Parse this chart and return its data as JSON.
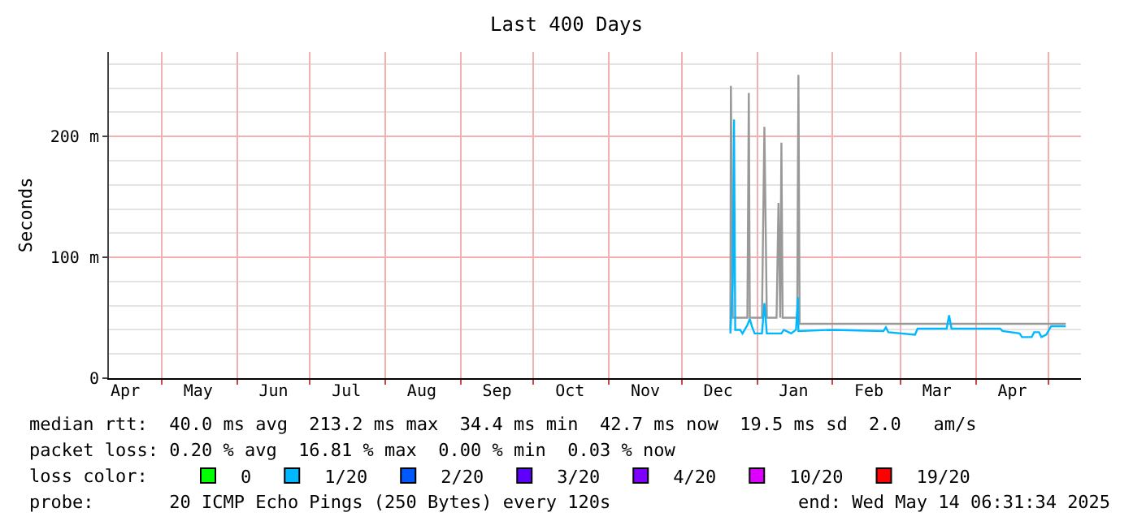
{
  "chart_data": {
    "type": "line",
    "title": "Last 400 Days",
    "ylabel": "Seconds",
    "xlim": [
      "2024-04-09T06:31",
      "2025-05-14T06:31"
    ],
    "xticks": [
      {
        "value": "2024-05-01",
        "label": null
      },
      {
        "value": "2024-06-01",
        "label": null
      },
      {
        "value": "2024-07-01",
        "label": null
      },
      {
        "value": "2024-08-01",
        "label": null
      },
      {
        "value": "2024-09-01",
        "label": null
      },
      {
        "value": "2024-10-01",
        "label": null
      },
      {
        "value": "2024-11-01",
        "label": null
      },
      {
        "value": "2024-12-01",
        "label": null
      },
      {
        "value": "2025-01-01",
        "label": null
      },
      {
        "value": "2025-02-01",
        "label": null
      },
      {
        "value": "2025-03-01",
        "label": null
      },
      {
        "value": "2025-04-01",
        "label": null
      },
      {
        "value": "2025-05-01",
        "label": null
      },
      {
        "value": "2024-04-16",
        "label": "Apr"
      },
      {
        "value": "2024-05-16",
        "label": "May"
      },
      {
        "value": "2024-06-16",
        "label": "Jun"
      },
      {
        "value": "2024-07-16",
        "label": "Jul"
      },
      {
        "value": "2024-08-16",
        "label": "Aug"
      },
      {
        "value": "2024-09-16",
        "label": "Sep"
      },
      {
        "value": "2024-10-16",
        "label": "Oct"
      },
      {
        "value": "2024-11-16",
        "label": "Nov"
      },
      {
        "value": "2024-12-16",
        "label": "Dec"
      },
      {
        "value": "2025-01-16",
        "label": "Jan"
      },
      {
        "value": "2025-02-16",
        "label": "Feb"
      },
      {
        "value": "2025-03-16",
        "label": "Mar"
      },
      {
        "value": "2025-04-16",
        "label": "Apr"
      }
    ],
    "ylim": [
      0,
      270
    ],
    "yticks": [
      0,
      {
        "value": 100,
        "label": "100 m"
      },
      {
        "value": 200,
        "label": "200 m"
      },
      {
        "value": 20,
        "label": null
      },
      {
        "value": 40,
        "label": null
      },
      {
        "value": 60,
        "label": null
      },
      {
        "value": 80,
        "label": null
      },
      {
        "value": 120,
        "label": null
      },
      {
        "value": 140,
        "label": null
      },
      {
        "value": 160,
        "label": null
      },
      {
        "value": 180,
        "label": null
      },
      {
        "value": 220,
        "label": null
      },
      {
        "value": 240,
        "label": null
      },
      {
        "value": 260,
        "label": null
      }
    ],
    "grid": true,
    "legend": "bottom",
    "series": [
      {
        "color": "#999999",
        "x": [
          "2024-12-21",
          "2024-12-21T05:00",
          "2024-12-22",
          "2024-12-28",
          "2024-12-28T14:00",
          "2024-12-29",
          "2025-01-03",
          "2025-01-04",
          "2025-01-05",
          "2025-01-09",
          "2025-01-09T19:00",
          "2025-01-10T12:00",
          "2025-01-11",
          "2025-01-11T12:00",
          "2025-01-17T12:00",
          "2025-01-18",
          "2025-01-18T12:00",
          "2025-05-08"
        ],
        "values": [
          40,
          242,
          50,
          50,
          236,
          50,
          50,
          208,
          50,
          50,
          145,
          50,
          195,
          50,
          50,
          251,
          45,
          45
        ]
      },
      {
        "color": "#00b8ff",
        "x": [
          "2024-12-21",
          "2024-12-22",
          "2024-12-22T12:00",
          "2024-12-23",
          "2024-12-25",
          "2024-12-26",
          "2024-12-28",
          "2024-12-29",
          "2024-12-30",
          "2024-12-31",
          "2025-01-03",
          "2025-01-04",
          "2025-01-05",
          "2025-01-11",
          "2025-01-12",
          "2025-01-15",
          "2025-01-17",
          "2025-01-17T20:00",
          "2025-01-18",
          "2025-02-01",
          "2025-02-22",
          "2025-02-23",
          "2025-02-24",
          "2025-03-07",
          "2025-03-08",
          "2025-03-20",
          "2025-03-21",
          "2025-03-22",
          "2025-04-11",
          "2025-04-12",
          "2025-04-19",
          "2025-04-20",
          "2025-04-24",
          "2025-04-25",
          "2025-04-27",
          "2025-04-28",
          "2025-04-30",
          "2025-05-02",
          "2025-05-08"
        ],
        "values": [
          37,
          80,
          214,
          40,
          40,
          37,
          44,
          49,
          42,
          37,
          37,
          62,
          37,
          37,
          40,
          37,
          40,
          67,
          39,
          40,
          39,
          42,
          38,
          36,
          41,
          41,
          52,
          41,
          41,
          39,
          37,
          34,
          34,
          38,
          38,
          34,
          36,
          43,
          43
        ]
      },
      {
        "name": "0",
        "color": "#00ff00"
      },
      {
        "name": "1/20",
        "color": "#00b8ff"
      },
      {
        "name": "2/20",
        "color": "#0059ff"
      },
      {
        "name": "3/20",
        "color": "#5e00ff"
      },
      {
        "name": "4/20",
        "color": "#7e00ff"
      },
      {
        "name": "10/20",
        "color": "#dd00ff"
      },
      {
        "name": "19/20",
        "color": "#ff0000"
      }
    ],
    "annotations": [
      "median rtt:  40.0 ms avg  213.2 ms max  34.4 ms min  42.7 ms now  19.5 ms sd  2.0   am/s",
      "packet loss: 0.20 % avg  16.81 % max  0.00 % min  0.03 % now",
      "loss color:",
      "probe:       20 ICMP Echo Pings (250 Bytes) every 120s",
      "end: Wed May 14 06:31:34 2025"
    ]
  }
}
